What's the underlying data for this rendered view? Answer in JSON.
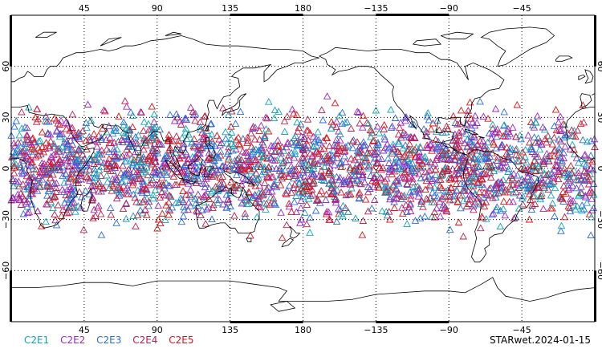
{
  "map": {
    "lon_range": [
      0,
      360
    ],
    "lat_range": [
      -90,
      90
    ],
    "projection": "cylindrical",
    "central_longitude": 180,
    "grid": "dotted",
    "grid_lon_step": 45,
    "grid_lat_step": 30,
    "coastline_color": "#000000",
    "lon_ticks": [
      {
        "value": 45,
        "label": "45"
      },
      {
        "value": 90,
        "label": "90"
      },
      {
        "value": 135,
        "label": "135"
      },
      {
        "value": 180,
        "label": "180"
      },
      {
        "value": 225,
        "label": "−135"
      },
      {
        "value": 270,
        "label": "−90"
      },
      {
        "value": 315,
        "label": "−45"
      }
    ],
    "lat_ticks": [
      {
        "value": 60,
        "label": "60"
      },
      {
        "value": 30,
        "label": "30"
      },
      {
        "value": 0,
        "label": "0"
      },
      {
        "value": -30,
        "label": "−30"
      },
      {
        "value": -60,
        "label": "−60"
      }
    ],
    "marker_shape": "triangle-open",
    "observation_lat_band": [
      -45,
      45
    ]
  },
  "legend": {
    "items": [
      {
        "label": "C2E1",
        "color": "#11a5b5"
      },
      {
        "label": "C2E2",
        "color": "#9b28c8"
      },
      {
        "label": "C2E3",
        "color": "#2a6be0"
      },
      {
        "label": "C2E4",
        "color": "#c21e4a"
      },
      {
        "label": "C2E5",
        "color": "#e01414"
      }
    ]
  },
  "footer": {
    "stamp": "STARwet.2024-01-15"
  }
}
